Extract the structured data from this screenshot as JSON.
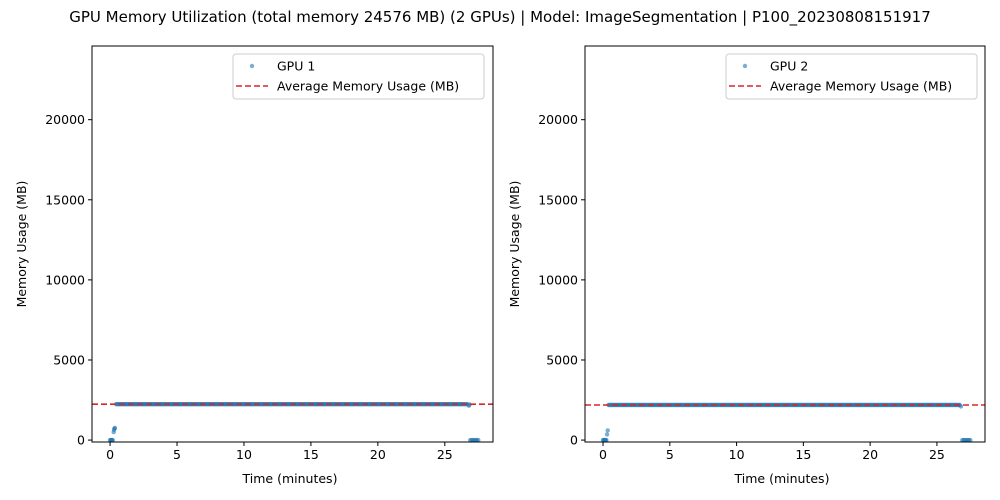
{
  "figure_title": "GPU Memory Utilization (total memory 24576 MB) (2 GPUs) | Model: ImageSegmentation | P100_20230808151917",
  "colors": {
    "scatter": "#1f77b4",
    "average_line": "#d62728",
    "axes": "#000000",
    "legend_border": "#cccccc"
  },
  "chart_data": [
    {
      "type": "scatter",
      "title": "",
      "xlabel": "Time (minutes)",
      "ylabel": "Memory Usage (MB)",
      "xlim": [
        -1.35,
        28.6
      ],
      "ylim": [
        -120,
        24600
      ],
      "xticks": [
        0,
        5,
        10,
        15,
        20,
        25
      ],
      "yticks": [
        0,
        5000,
        10000,
        15000,
        20000
      ],
      "grid": false,
      "legend_position": "top-right",
      "series": [
        {
          "name": "GPU 1",
          "style": "points",
          "points": [
            [
              0.0,
              0
            ],
            [
              0.05,
              0
            ],
            [
              0.1,
              0
            ],
            [
              0.15,
              0
            ],
            [
              0.2,
              0
            ],
            [
              0.27,
              500
            ],
            [
              0.3,
              650
            ],
            [
              0.33,
              720
            ],
            [
              0.36,
              760
            ],
            [
              26.8,
              2150
            ],
            [
              26.85,
              2220
            ],
            [
              26.9,
              0
            ],
            [
              27.0,
              0
            ],
            [
              27.1,
              0
            ],
            [
              27.2,
              0
            ],
            [
              27.3,
              0
            ],
            [
              27.4,
              0
            ],
            [
              27.5,
              0
            ]
          ],
          "plateau": {
            "x_start": 0.45,
            "x_end": 26.75,
            "y": 2240
          }
        },
        {
          "name": "Average Memory Usage (MB)",
          "style": "dashed-hline",
          "y": 2240
        }
      ]
    },
    {
      "type": "scatter",
      "title": "",
      "xlabel": "Time (minutes)",
      "ylabel": "Memory Usage (MB)",
      "xlim": [
        -1.35,
        28.6
      ],
      "ylim": [
        -120,
        24600
      ],
      "xticks": [
        0,
        5,
        10,
        15,
        20,
        25
      ],
      "yticks": [
        0,
        5000,
        10000,
        15000,
        20000
      ],
      "grid": false,
      "legend_position": "top-right",
      "series": [
        {
          "name": "GPU 2",
          "style": "points",
          "points": [
            [
              0.0,
              0
            ],
            [
              0.05,
              0
            ],
            [
              0.1,
              0
            ],
            [
              0.15,
              0
            ],
            [
              0.2,
              0
            ],
            [
              0.25,
              0
            ],
            [
              0.3,
              350
            ],
            [
              0.35,
              600
            ],
            [
              26.8,
              2100
            ],
            [
              26.9,
              0
            ],
            [
              27.0,
              0
            ],
            [
              27.1,
              0
            ],
            [
              27.2,
              0
            ],
            [
              27.3,
              0
            ],
            [
              27.4,
              0
            ],
            [
              27.5,
              0
            ]
          ],
          "plateau": {
            "x_start": 0.4,
            "x_end": 26.75,
            "y": 2190
          }
        },
        {
          "name": "Average Memory Usage (MB)",
          "style": "dashed-hline",
          "y": 2190
        }
      ]
    }
  ]
}
